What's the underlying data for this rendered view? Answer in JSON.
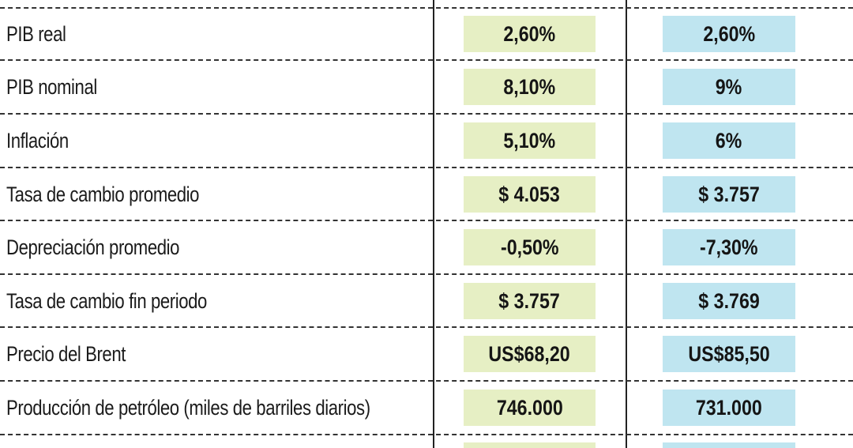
{
  "table": {
    "rows": [
      {
        "label": "PIB real",
        "value_a": "2,60%",
        "value_b": "2,60%"
      },
      {
        "label": "PIB nominal",
        "value_a": "8,10%",
        "value_b": "9%"
      },
      {
        "label": "Inflación",
        "value_a": "5,10%",
        "value_b": "6%"
      },
      {
        "label": "Tasa de cambio promedio",
        "value_a": "$ 4.053",
        "value_b": "$ 3.757"
      },
      {
        "label": "Depreciación promedio",
        "value_a": "-0,50%",
        "value_b": "-7,30%"
      },
      {
        "label": "Tasa de cambio fin periodo",
        "value_a": "$ 3.757",
        "value_b": "$ 3.769"
      },
      {
        "label": "Precio del Brent",
        "value_a": "US$68,20",
        "value_b": "US$85,50"
      },
      {
        "label": "Producción de petróleo (miles de barriles diarios)",
        "value_a": "746.000",
        "value_b": "731.000"
      }
    ]
  },
  "colors": {
    "column_a_fill": "#e6efc4",
    "column_b_fill": "#bfe5f0",
    "divider": "#222222"
  }
}
